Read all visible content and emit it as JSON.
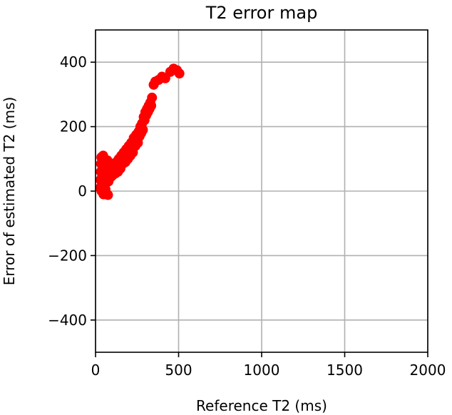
{
  "chart_data": {
    "type": "scatter",
    "title": "T2 error map",
    "xlabel": "Reference T2 (ms)",
    "ylabel": "Error of estimated T2 (ms)",
    "xlim": [
      0,
      2000
    ],
    "ylim": [
      -500,
      500
    ],
    "x_ticks": [
      0,
      500,
      1000,
      1500,
      2000
    ],
    "y_ticks": [
      -400,
      -200,
      0,
      200,
      400
    ],
    "x_tick_labels": [
      "0",
      "500",
      "1000",
      "1500",
      "2000"
    ],
    "y_tick_labels": [
      "−400",
      "−200",
      "0",
      "200",
      "400"
    ],
    "grid": true,
    "marker_color": "#ff0000",
    "series": [
      {
        "points": [
          [
            28,
            10
          ],
          [
            30,
            35
          ],
          [
            32,
            60
          ],
          [
            33,
            85
          ],
          [
            35,
            105
          ],
          [
            36,
            0
          ],
          [
            38,
            20
          ],
          [
            40,
            45
          ],
          [
            42,
            70
          ],
          [
            44,
            95
          ],
          [
            46,
            110
          ],
          [
            48,
            -10
          ],
          [
            50,
            15
          ],
          [
            52,
            40
          ],
          [
            55,
            65
          ],
          [
            58,
            85
          ],
          [
            60,
            5
          ],
          [
            62,
            -10
          ],
          [
            65,
            25
          ],
          [
            68,
            50
          ],
          [
            70,
            75
          ],
          [
            72,
            95
          ],
          [
            75,
            -12
          ],
          [
            78,
            30
          ],
          [
            80,
            55
          ],
          [
            85,
            40
          ],
          [
            90,
            60
          ],
          [
            95,
            45
          ],
          [
            100,
            70
          ],
          [
            105,
            50
          ],
          [
            110,
            85
          ],
          [
            115,
            65
          ],
          [
            120,
            55
          ],
          [
            125,
            90
          ],
          [
            130,
            75
          ],
          [
            135,
            60
          ],
          [
            140,
            100
          ],
          [
            145,
            80
          ],
          [
            150,
            70
          ],
          [
            155,
            110
          ],
          [
            160,
            95
          ],
          [
            165,
            85
          ],
          [
            170,
            120
          ],
          [
            175,
            105
          ],
          [
            180,
            90
          ],
          [
            185,
            130
          ],
          [
            190,
            115
          ],
          [
            195,
            100
          ],
          [
            200,
            140
          ],
          [
            205,
            125
          ],
          [
            210,
            110
          ],
          [
            215,
            150
          ],
          [
            220,
            135
          ],
          [
            225,
            120
          ],
          [
            230,
            165
          ],
          [
            235,
            150
          ],
          [
            240,
            140
          ],
          [
            245,
            175
          ],
          [
            250,
            160
          ],
          [
            255,
            150
          ],
          [
            260,
            185
          ],
          [
            265,
            170
          ],
          [
            270,
            200
          ],
          [
            275,
            180
          ],
          [
            280,
            210
          ],
          [
            285,
            190
          ],
          [
            290,
            230
          ],
          [
            295,
            220
          ],
          [
            300,
            245
          ],
          [
            305,
            235
          ],
          [
            310,
            255
          ],
          [
            315,
            245
          ],
          [
            320,
            265
          ],
          [
            325,
            255
          ],
          [
            330,
            275
          ],
          [
            335,
            265
          ],
          [
            340,
            290
          ],
          [
            350,
            330
          ],
          [
            360,
            340
          ],
          [
            380,
            345
          ],
          [
            400,
            355
          ],
          [
            420,
            350
          ],
          [
            450,
            370
          ],
          [
            470,
            380
          ],
          [
            490,
            375
          ],
          [
            505,
            365
          ]
        ]
      }
    ]
  }
}
